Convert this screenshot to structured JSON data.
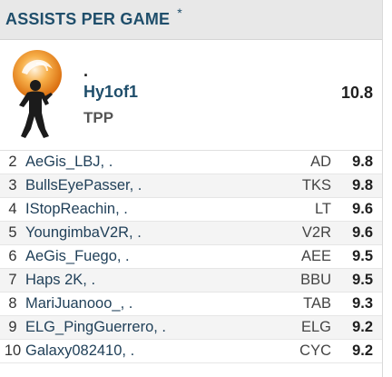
{
  "header": {
    "title": "ASSISTS PER GAME",
    "star": "*"
  },
  "leader": {
    "dot": ".",
    "name": "Hy1of1",
    "team": "TPP",
    "value": "10.8",
    "logo_icon": "basketball-player-logo-icon",
    "colors": {
      "orange": "#f08a1c",
      "silhouette": "#1b1b1b"
    }
  },
  "rows": [
    {
      "rank": "2",
      "player": "AeGis_LBJ, .",
      "team": "AD",
      "value": "9.8"
    },
    {
      "rank": "3",
      "player": "BullsEyePasser, .",
      "team": "TKS",
      "value": "9.8"
    },
    {
      "rank": "4",
      "player": "IStopReachin, .",
      "team": "LT",
      "value": "9.6"
    },
    {
      "rank": "5",
      "player": "YoungimbaV2R, .",
      "team": "V2R",
      "value": "9.6"
    },
    {
      "rank": "6",
      "player": "AeGis_Fuego, .",
      "team": "AEE",
      "value": "9.5"
    },
    {
      "rank": "7",
      "player": "Haps 2K, .",
      "team": "BBU",
      "value": "9.5"
    },
    {
      "rank": "8",
      "player": "MariJuanooo_, .",
      "team": "TAB",
      "value": "9.3"
    },
    {
      "rank": "9",
      "player": "ELG_PingGuerrero, .",
      "team": "ELG",
      "value": "9.2"
    },
    {
      "rank": "10",
      "player": "Galaxy082410, .",
      "team": "CYC",
      "value": "9.2"
    }
  ],
  "colors": {
    "header_bg": "#e8e8e8",
    "title": "#1f4e6b",
    "row_alt": "#f4f4f4"
  }
}
